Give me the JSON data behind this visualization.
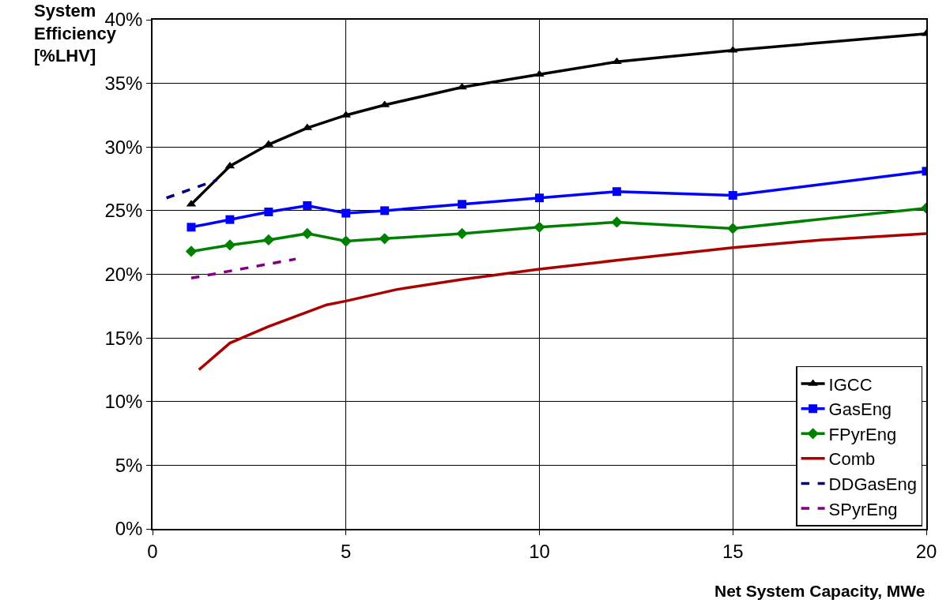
{
  "chart_data": {
    "type": "line",
    "xlabel": "Net System Capacity, MWe",
    "ylabel": "System Efficiency [%LHV]",
    "xlim": [
      0,
      20
    ],
    "xticks": [
      0,
      5,
      10,
      15,
      20
    ],
    "ylim": [
      0,
      40
    ],
    "yticks": [
      {
        "value": 0,
        "label": "0%"
      },
      {
        "value": 5,
        "label": "5%"
      },
      {
        "value": 10,
        "label": "10%"
      },
      {
        "value": 15,
        "label": "15%"
      },
      {
        "value": 20,
        "label": "20%"
      },
      {
        "value": 25,
        "label": "25%"
      },
      {
        "value": 30,
        "label": "30%"
      },
      {
        "value": 35,
        "label": "35%"
      },
      {
        "value": 40,
        "label": "40%"
      }
    ],
    "grid": true,
    "legend": "bottom right",
    "series": [
      {
        "name": "IGCC",
        "color": "#000000",
        "marker": "triangle",
        "line_style": "solid",
        "x": [
          1,
          2,
          3,
          4,
          5,
          6,
          8,
          10,
          12,
          15,
          20
        ],
        "values": [
          25.5,
          28.5,
          30.2,
          31.5,
          32.5,
          33.3,
          34.7,
          35.7,
          36.7,
          37.6,
          38.9
        ]
      },
      {
        "name": "GasEng",
        "color": "#0000ff",
        "marker": "square",
        "line_style": "solid",
        "x": [
          1,
          2,
          3,
          4,
          5,
          6,
          8,
          10,
          12,
          15,
          20
        ],
        "values": [
          23.7,
          24.3,
          24.9,
          25.4,
          24.8,
          25.0,
          25.5,
          26.0,
          26.5,
          26.2,
          28.1
        ]
      },
      {
        "name": "FPyrEng",
        "color": "#008000",
        "marker": "diamond",
        "line_style": "solid",
        "x": [
          1,
          2,
          3,
          4,
          5,
          6,
          8,
          10,
          12,
          15,
          20
        ],
        "values": [
          21.8,
          22.3,
          22.7,
          23.2,
          22.6,
          22.8,
          23.2,
          23.7,
          24.1,
          23.6,
          25.2
        ]
      },
      {
        "name": "Comb",
        "color": "#aa0000",
        "marker": "none",
        "line_style": "solid",
        "x": [
          1.2,
          2,
          3,
          4.5,
          5,
          6.3,
          8,
          10,
          12,
          15,
          17.3,
          20
        ],
        "values": [
          12.5,
          14.6,
          15.9,
          17.6,
          17.9,
          18.8,
          19.6,
          20.4,
          21.1,
          22.1,
          22.7,
          23.2
        ]
      },
      {
        "name": "DDGasEng",
        "color": "#000080",
        "marker": "none",
        "line_style": "dashed",
        "x": [
          0.36,
          1.66
        ],
        "values": [
          26.0,
          27.4
        ]
      },
      {
        "name": "SPyrEng",
        "color": "#800080",
        "marker": "none",
        "line_style": "dashed",
        "x": [
          1.0,
          3.7
        ],
        "values": [
          19.7,
          21.2
        ]
      }
    ]
  }
}
